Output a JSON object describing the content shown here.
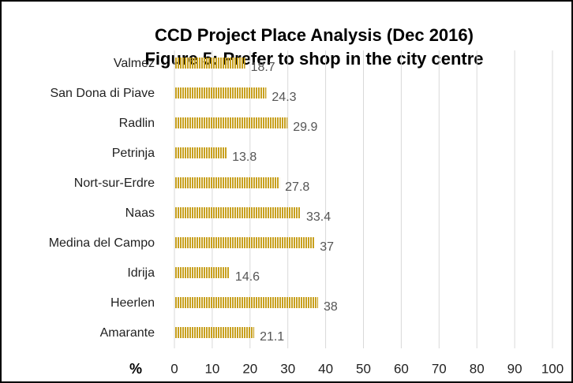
{
  "chart_data": {
    "type": "bar",
    "orientation": "horizontal",
    "title": "CCD Project Place Analysis (Dec 2016)",
    "subtitle": "Figure 5: Prefer to shop in the city centre",
    "xlabel": "%",
    "categories": [
      "Valmez",
      "San Dona di Piave",
      "Radlin",
      "Petrinja",
      "Nort-sur-Erdre",
      "Naas",
      "Medina del Campo",
      "Idrija",
      "Heerlen",
      "Amarante"
    ],
    "values": [
      18.7,
      24.3,
      29.9,
      13.8,
      27.8,
      33.4,
      37,
      14.6,
      38,
      21.1
    ],
    "color": "#c8a01e",
    "xlim": [
      0,
      100
    ],
    "xticks": [
      0,
      10,
      20,
      30,
      40,
      50,
      60,
      70,
      80,
      90,
      100
    ],
    "grid": true
  }
}
